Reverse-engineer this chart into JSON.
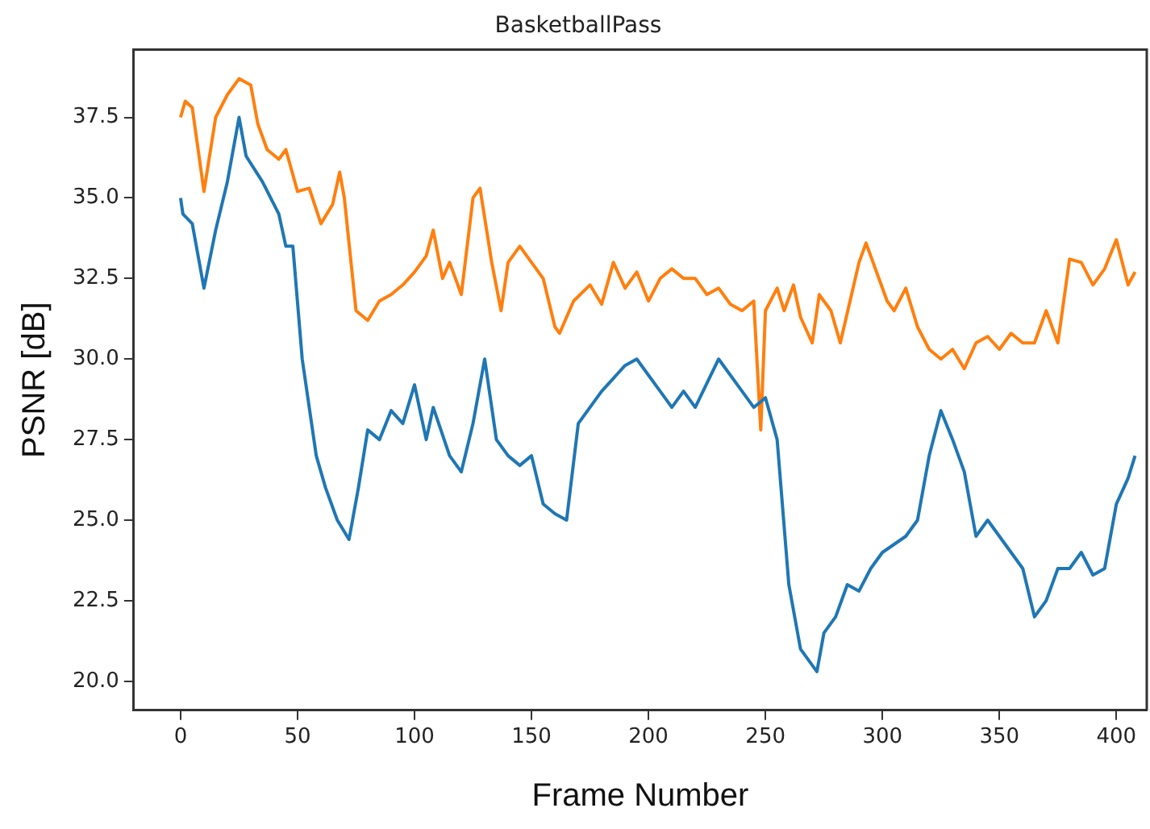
{
  "chart_data": {
    "type": "line",
    "title": "BasketballPass",
    "xlabel": "Frame Number",
    "ylabel": "PSNR [dB]",
    "xlim": [
      -20,
      413
    ],
    "ylim": [
      19.1,
      39.6
    ],
    "xticks": [
      0,
      50,
      100,
      150,
      200,
      250,
      300,
      350,
      400
    ],
    "yticks": [
      {
        "value": 20,
        "label": "20.0"
      },
      {
        "value": 22.5,
        "label": "22.5"
      },
      {
        "value": 25,
        "label": "25.0"
      },
      {
        "value": 27.5,
        "label": "27.5"
      },
      {
        "value": 30,
        "label": "30.0"
      },
      {
        "value": 32.5,
        "label": "32.5"
      },
      {
        "value": 35,
        "label": "35.0"
      },
      {
        "value": 37.5,
        "label": "37.5"
      }
    ],
    "grid": false,
    "legend": false,
    "marker": "none",
    "line_style": "solid",
    "series": [
      {
        "color": "#1f77b4",
        "x": [
          0,
          1,
          5,
          10,
          15,
          20,
          25,
          28,
          35,
          42,
          45,
          48,
          52,
          58,
          62,
          67,
          72,
          76,
          80,
          85,
          90,
          95,
          100,
          105,
          108,
          115,
          120,
          125,
          130,
          135,
          140,
          145,
          150,
          155,
          160,
          165,
          170,
          175,
          180,
          190,
          195,
          200,
          205,
          210,
          215,
          220,
          230,
          240,
          245,
          250,
          255,
          260,
          265,
          272,
          275,
          280,
          285,
          290,
          295,
          300,
          310,
          315,
          320,
          325,
          330,
          335,
          340,
          345,
          350,
          355,
          360,
          365,
          370,
          375,
          380,
          385,
          390,
          395,
          400,
          405,
          408
        ],
        "values": [
          35,
          34.5,
          34.2,
          32.2,
          34,
          35.5,
          37.5,
          36.3,
          35.5,
          34.5,
          33.5,
          33.5,
          30,
          27,
          26,
          25,
          24.4,
          26,
          27.8,
          27.5,
          28.4,
          28,
          29.2,
          27.5,
          28.5,
          27,
          26.5,
          28,
          30,
          27.5,
          27,
          26.7,
          27,
          25.5,
          25.2,
          25,
          28,
          28.5,
          29,
          29.8,
          30,
          29.5,
          29,
          28.5,
          29,
          28.5,
          30,
          29,
          28.5,
          28.8,
          27.5,
          23,
          21,
          20.3,
          21.5,
          22,
          23,
          22.8,
          23.5,
          24,
          24.5,
          25,
          27,
          28.4,
          27.5,
          26.5,
          24.5,
          25,
          24.5,
          24,
          23.5,
          22,
          22.5,
          23.5,
          23.5,
          24,
          23.3,
          23.5,
          25.5,
          26.3,
          27
        ]
      },
      {
        "color": "#ff7f0e",
        "x": [
          0,
          2,
          5,
          10,
          15,
          20,
          25,
          30,
          33,
          37,
          42,
          45,
          50,
          55,
          60,
          65,
          68,
          70,
          75,
          80,
          85,
          90,
          95,
          100,
          105,
          108,
          112,
          115,
          120,
          125,
          128,
          133,
          137,
          140,
          145,
          150,
          155,
          160,
          162,
          168,
          175,
          180,
          185,
          190,
          195,
          200,
          205,
          210,
          215,
          220,
          225,
          230,
          235,
          240,
          245,
          248,
          250,
          255,
          258,
          262,
          265,
          270,
          273,
          278,
          282,
          290,
          293,
          297,
          302,
          305,
          310,
          315,
          320,
          325,
          330,
          335,
          340,
          345,
          350,
          355,
          360,
          365,
          370,
          375,
          380,
          385,
          390,
          395,
          400,
          405,
          408
        ],
        "values": [
          37.5,
          38,
          37.8,
          35.2,
          37.5,
          38.2,
          38.7,
          38.5,
          37.3,
          36.5,
          36.2,
          36.5,
          35.2,
          35.3,
          34.2,
          34.8,
          35.8,
          35,
          31.5,
          31.2,
          31.8,
          32,
          32.3,
          32.7,
          33.2,
          34,
          32.5,
          33,
          32,
          35,
          35.3,
          33,
          31.5,
          33,
          33.5,
          33,
          32.5,
          31,
          30.8,
          31.8,
          32.3,
          31.7,
          33,
          32.2,
          32.7,
          31.8,
          32.5,
          32.8,
          32.5,
          32.5,
          32,
          32.2,
          31.7,
          31.5,
          31.8,
          27.8,
          31.5,
          32.2,
          31.5,
          32.3,
          31.3,
          30.5,
          32,
          31.5,
          30.5,
          33,
          33.6,
          32.8,
          31.8,
          31.5,
          32.2,
          31,
          30.3,
          30,
          30.3,
          29.7,
          30.5,
          30.7,
          30.3,
          30.8,
          30.5,
          30.5,
          31.5,
          30.5,
          33.1,
          33,
          32.3,
          32.8,
          33.7,
          32.3,
          32.7
        ]
      }
    ]
  }
}
